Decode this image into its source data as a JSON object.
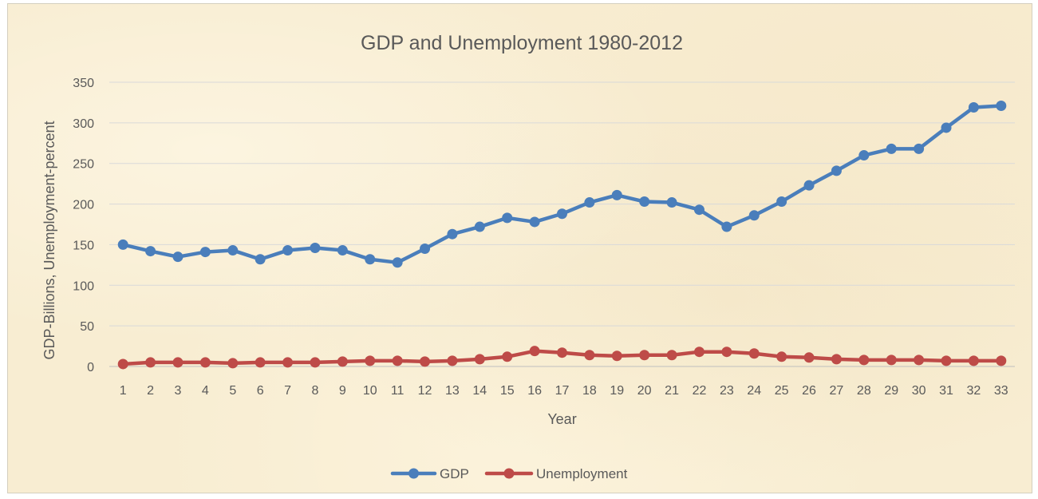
{
  "chart_data": {
    "type": "line",
    "title": "GDP and Unemployment  1980-2012",
    "xlabel": "Year",
    "ylabel": "GDP-Billions, Unemployment-percent",
    "ylim": [
      0,
      350
    ],
    "yticks": [
      0,
      50,
      100,
      150,
      200,
      250,
      300,
      350
    ],
    "categories": [
      "1",
      "2",
      "3",
      "4",
      "5",
      "6",
      "7",
      "8",
      "9",
      "10",
      "11",
      "12",
      "13",
      "14",
      "15",
      "16",
      "17",
      "18",
      "19",
      "20",
      "21",
      "22",
      "23",
      "24",
      "25",
      "26",
      "27",
      "28",
      "29",
      "30",
      "31",
      "32",
      "33"
    ],
    "grid": true,
    "legend_position": "bottom",
    "series": [
      {
        "name": "GDP",
        "color": "#4a7ebb",
        "values": [
          150,
          142,
          135,
          141,
          143,
          132,
          143,
          146,
          143,
          132,
          128,
          145,
          163,
          172,
          183,
          178,
          188,
          202,
          211,
          203,
          202,
          193,
          172,
          186,
          203,
          223,
          241,
          260,
          268,
          268,
          294,
          319,
          321
        ]
      },
      {
        "name": "Unemployment",
        "color": "#be4b48",
        "values": [
          3,
          5,
          5,
          5,
          4,
          5,
          5,
          5,
          6,
          7,
          7,
          6,
          7,
          9,
          12,
          19,
          17,
          14,
          13,
          14,
          14,
          18,
          18,
          16,
          12,
          11,
          9,
          8,
          8,
          8,
          7,
          7,
          7
        ]
      }
    ]
  }
}
